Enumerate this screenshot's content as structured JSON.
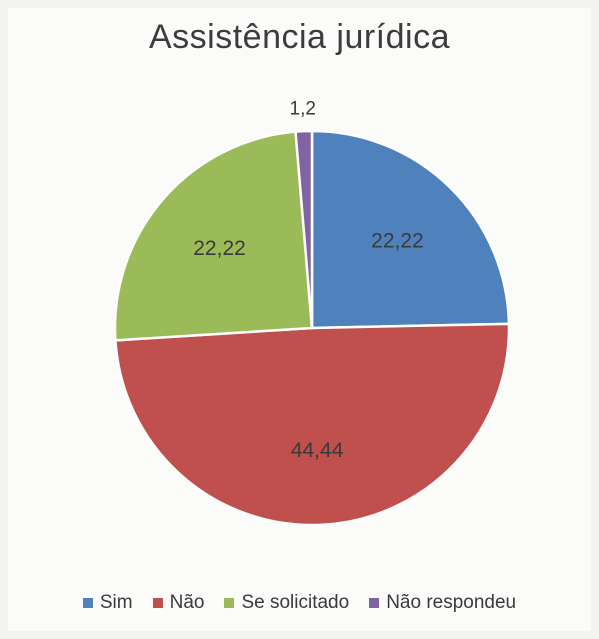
{
  "chart_data": {
    "type": "pie",
    "title": "Assistência jurídica",
    "slices": [
      {
        "name": "Sim",
        "value": 22.22,
        "label": "22,22",
        "color": "#4f81bd"
      },
      {
        "name": "Não",
        "value": 44.44,
        "label": "44,44",
        "color": "#c0504d"
      },
      {
        "name": "Se solicitado",
        "value": 22.22,
        "label": "22,22",
        "color": "#9bbb59"
      },
      {
        "name": "Não respondeu",
        "value": 1.2,
        "label": "1,2",
        "color": "#8064a2"
      }
    ],
    "legend_position": "bottom"
  }
}
